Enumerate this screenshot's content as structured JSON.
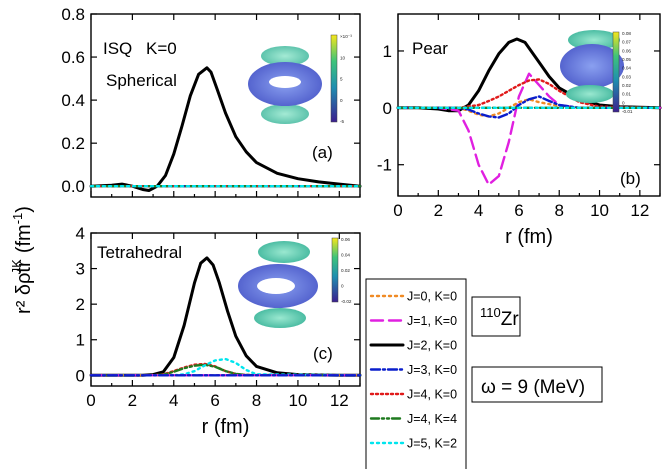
{
  "figure": {
    "ylabel": "r² δρtr",
    "ylabel_sup": "JK",
    "ylabel_unit": "(fm",
    "ylabel_unit_sup": "-1",
    "ylabel_close": ")",
    "nucleus_mass": "110",
    "nucleus_symbol": "Zr",
    "omega_label": "ω = 9 (MeV)"
  },
  "legend": [
    {
      "label": "J=0, K=0",
      "color": "#f08a24",
      "dash": "2,4"
    },
    {
      "label": "J=1, K=0",
      "color": "#e020e0",
      "dash": "12,6"
    },
    {
      "label": "J=2, K=0",
      "color": "#000000",
      "dash": ""
    },
    {
      "label": "J=3, K=0",
      "color": "#0a1ecc",
      "dash": "9,3,2,3"
    },
    {
      "label": "J=4, K=0",
      "color": "#e01a1a",
      "dash": "2,3"
    },
    {
      "label": "J=4, K=4",
      "color": "#1f7a1f",
      "dash": "8,3,2,3,2,3"
    },
    {
      "label": "J=5, K=2",
      "color": "#00e5ee",
      "dash": "2,4"
    }
  ],
  "chart_data": [
    {
      "type": "line",
      "panel": "(a)",
      "annotations": [
        "ISQ",
        "K=0",
        "Spherical"
      ],
      "xlim": [
        0,
        13
      ],
      "ylim": [
        -0.05,
        0.8
      ],
      "xticks": [
        0,
        2,
        4,
        6,
        8,
        10,
        12
      ],
      "yticks": [
        0.0,
        0.2,
        0.4,
        0.6,
        0.8
      ],
      "yticklabels": [
        "0.0",
        "0.2",
        "0.4",
        "0.6",
        "0.8"
      ],
      "x_tick_labels_shown": false,
      "colorbar_labels": [
        "×10⁻³",
        "10",
        "5",
        "0",
        "-5"
      ],
      "series": [
        {
          "legend": 2,
          "x": [
            0,
            1,
            1.5,
            2,
            2.5,
            2.8,
            3.2,
            3.6,
            4,
            4.4,
            4.8,
            5.2,
            5.6,
            5.8,
            6.1,
            6.5,
            7,
            7.5,
            8,
            9,
            10,
            11,
            12,
            13
          ],
          "y": [
            0,
            0.005,
            0.01,
            0.0,
            -0.015,
            -0.02,
            0.0,
            0.05,
            0.15,
            0.28,
            0.42,
            0.52,
            0.55,
            0.53,
            0.45,
            0.34,
            0.23,
            0.16,
            0.11,
            0.06,
            0.035,
            0.02,
            0.01,
            0.0
          ]
        },
        {
          "legend": 0,
          "x": [
            0,
            13
          ],
          "y": [
            0,
            0
          ]
        },
        {
          "legend": 1,
          "x": [
            0,
            13
          ],
          "y": [
            0,
            0
          ]
        },
        {
          "legend": 3,
          "x": [
            0,
            13
          ],
          "y": [
            0,
            0
          ]
        },
        {
          "legend": 4,
          "x": [
            0,
            13
          ],
          "y": [
            0,
            0
          ]
        },
        {
          "legend": 5,
          "x": [
            0,
            13
          ],
          "y": [
            0,
            0
          ]
        },
        {
          "legend": 6,
          "x": [
            0,
            13
          ],
          "y": [
            0,
            0
          ]
        }
      ]
    },
    {
      "type": "line",
      "panel": "(b)",
      "annotations": [
        "Pear"
      ],
      "xlim": [
        0,
        13
      ],
      "ylim": [
        -1.55,
        1.65
      ],
      "xticks": [
        0,
        2,
        4,
        6,
        8,
        10,
        12
      ],
      "yticks": [
        -1,
        0,
        1
      ],
      "yticklabels": [
        "-1",
        "0",
        "1"
      ],
      "xlabel": "r (fm)",
      "colorbar_labels": [
        "0.08",
        "0.07",
        "0.06",
        "0.05",
        "0.04",
        "0.03",
        "0.02",
        "0.01",
        "0",
        "-0.01"
      ],
      "series": [
        {
          "legend": 2,
          "x": [
            0,
            1,
            1.5,
            2,
            2.5,
            3,
            3.5,
            4,
            4.5,
            5,
            5.5,
            5.9,
            6.3,
            7,
            7.5,
            8,
            9,
            10,
            11,
            12,
            13
          ],
          "y": [
            0,
            0,
            -0.01,
            -0.02,
            -0.05,
            -0.05,
            0.05,
            0.3,
            0.65,
            0.95,
            1.15,
            1.21,
            1.15,
            0.8,
            0.55,
            0.35,
            0.15,
            0.05,
            0.02,
            0.01,
            0
          ]
        },
        {
          "legend": 1,
          "x": [
            0,
            2,
            3,
            3.5,
            4,
            4.5,
            5,
            5.5,
            6,
            6.5,
            7,
            7.5,
            8,
            9,
            10,
            13
          ],
          "y": [
            0,
            0,
            -0.05,
            -0.4,
            -1.0,
            -1.35,
            -1.2,
            -0.6,
            0.2,
            0.6,
            0.4,
            0.2,
            0.05,
            0,
            0,
            0
          ]
        },
        {
          "legend": 4,
          "x": [
            0,
            3,
            4,
            4.5,
            5,
            5.5,
            6,
            6.5,
            7,
            7.5,
            8,
            9,
            10,
            13
          ],
          "y": [
            0,
            0,
            0.05,
            0.12,
            0.2,
            0.3,
            0.4,
            0.48,
            0.5,
            0.42,
            0.3,
            0.1,
            0.02,
            0
          ]
        },
        {
          "legend": 0,
          "x": [
            0,
            3,
            3.5,
            4,
            4.5,
            5,
            5.5,
            6,
            6.5,
            7,
            8,
            9,
            13
          ],
          "y": [
            0,
            0,
            -0.05,
            -0.12,
            -0.15,
            -0.1,
            0.0,
            0.1,
            0.15,
            0.1,
            0.03,
            0,
            0
          ]
        },
        {
          "legend": 3,
          "x": [
            0,
            3,
            3.5,
            4,
            4.5,
            5,
            5.5,
            6,
            6.5,
            7,
            7.5,
            8,
            9,
            13
          ],
          "y": [
            0,
            0,
            -0.03,
            -0.1,
            -0.15,
            -0.17,
            -0.1,
            0.05,
            0.15,
            0.2,
            0.12,
            0.05,
            0,
            0
          ]
        },
        {
          "legend": 5,
          "x": [
            0,
            13
          ],
          "y": [
            0,
            0
          ]
        },
        {
          "legend": 6,
          "x": [
            0,
            13
          ],
          "y": [
            0,
            0
          ]
        }
      ]
    },
    {
      "type": "line",
      "panel": "(c)",
      "annotations": [
        "Tetrahedral"
      ],
      "xlim": [
        0,
        13
      ],
      "ylim": [
        -0.3,
        4
      ],
      "xticks": [
        0,
        2,
        4,
        6,
        8,
        10,
        12
      ],
      "yticks": [
        0,
        1,
        2,
        3,
        4
      ],
      "yticklabels": [
        "0",
        "1",
        "2",
        "3",
        "4"
      ],
      "xlabel": "r (fm)",
      "colorbar_labels": [
        "0.06",
        "0.04",
        "0.02",
        "0",
        "-0.02"
      ],
      "series": [
        {
          "legend": 2,
          "x": [
            0,
            2.5,
            3,
            3.5,
            4,
            4.5,
            5,
            5.3,
            5.6,
            5.9,
            6.2,
            6.6,
            7,
            7.5,
            8,
            9,
            10,
            11,
            12,
            13
          ],
          "y": [
            0,
            0,
            0.02,
            0.1,
            0.5,
            1.4,
            2.6,
            3.15,
            3.3,
            3.1,
            2.6,
            1.8,
            1.1,
            0.55,
            0.25,
            0.07,
            0.02,
            0.01,
            0,
            0
          ]
        },
        {
          "legend": 4,
          "x": [
            0,
            3,
            3.5,
            4,
            4.5,
            5,
            5.5,
            6,
            6.5,
            7,
            7.5,
            13
          ],
          "y": [
            0,
            0,
            0.03,
            0.12,
            0.22,
            0.3,
            0.32,
            0.25,
            0.12,
            0.04,
            0.01,
            0
          ]
        },
        {
          "legend": 5,
          "x": [
            0,
            3,
            3.5,
            4,
            4.5,
            5,
            5.5,
            6,
            6.5,
            7,
            7.5,
            13
          ],
          "y": [
            0,
            0,
            0.02,
            0.1,
            0.2,
            0.27,
            0.3,
            0.24,
            0.12,
            0.04,
            0.01,
            0
          ]
        },
        {
          "legend": 6,
          "x": [
            0,
            4,
            4.5,
            5,
            5.5,
            6,
            6.5,
            7,
            7.5,
            8,
            13
          ],
          "y": [
            0,
            0,
            0.03,
            0.12,
            0.28,
            0.42,
            0.46,
            0.35,
            0.15,
            0.03,
            0
          ]
        },
        {
          "legend": 0,
          "x": [
            0,
            13
          ],
          "y": [
            0,
            0
          ]
        },
        {
          "legend": 1,
          "x": [
            0,
            13
          ],
          "y": [
            0,
            0
          ]
        },
        {
          "legend": 3,
          "x": [
            0,
            13
          ],
          "y": [
            0,
            0
          ]
        }
      ]
    }
  ]
}
